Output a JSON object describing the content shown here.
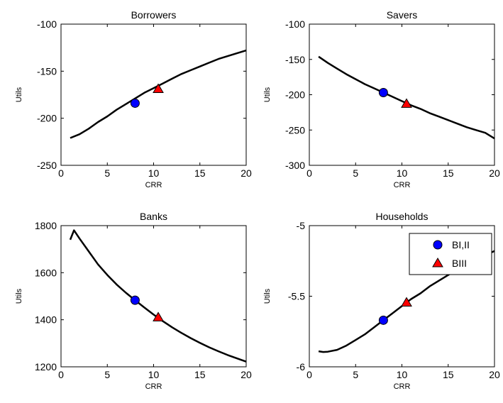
{
  "chart_data": [
    {
      "type": "line",
      "title": "Borrowers",
      "xlabel": "CRR",
      "ylabel": "Utils",
      "xlim": [
        0,
        20
      ],
      "ylim": [
        -250,
        -100
      ],
      "xticks": [
        0,
        5,
        10,
        15,
        20
      ],
      "yticks": [
        -250,
        -200,
        -150,
        -100
      ],
      "grid": false,
      "series": [
        {
          "x": [
            1,
            2,
            3,
            4,
            5,
            6,
            7,
            8,
            9,
            10,
            11,
            12,
            13,
            14,
            15,
            16,
            17,
            18,
            19,
            20
          ],
          "values": [
            -221,
            -217,
            -211,
            -204,
            -198,
            -191,
            -185,
            -179,
            -173,
            -168,
            -163,
            -158,
            -153,
            -149,
            -145,
            -141,
            -137,
            -134,
            -131,
            -128
          ]
        }
      ],
      "markers": [
        {
          "label": "BI,II",
          "shape": "circle",
          "color": "#0000ff",
          "x": 8,
          "y": -184
        },
        {
          "label": "BIII",
          "shape": "triangle",
          "color": "#ff0000",
          "x": 10.5,
          "y": -169
        }
      ]
    },
    {
      "type": "line",
      "title": "Savers",
      "xlabel": "CRR",
      "ylabel": "Utils",
      "xlim": [
        0,
        20
      ],
      "ylim": [
        -300,
        -100
      ],
      "xticks": [
        0,
        5,
        10,
        15,
        20
      ],
      "yticks": [
        -300,
        -250,
        -200,
        -150,
        -100
      ],
      "grid": false,
      "series": [
        {
          "x": [
            1,
            2,
            3,
            4,
            5,
            6,
            7,
            8,
            9,
            10,
            11,
            12,
            13,
            14,
            15,
            16,
            17,
            18,
            19,
            20
          ],
          "values": [
            -146,
            -155,
            -163,
            -171,
            -178,
            -185,
            -191,
            -197,
            -203,
            -209,
            -215,
            -220,
            -226,
            -231,
            -236,
            -241,
            -246,
            -250,
            -254,
            -262
          ]
        }
      ],
      "markers": [
        {
          "label": "BI,II",
          "shape": "circle",
          "color": "#0000ff",
          "x": 8,
          "y": -197
        },
        {
          "label": "BIII",
          "shape": "triangle",
          "color": "#ff0000",
          "x": 10.5,
          "y": -213
        }
      ]
    },
    {
      "type": "line",
      "title": "Banks",
      "xlabel": "CRR",
      "ylabel": "Utils",
      "xlim": [
        0,
        20
      ],
      "ylim": [
        1200,
        1800
      ],
      "xticks": [
        0,
        5,
        10,
        15,
        20
      ],
      "yticks": [
        1200,
        1400,
        1600,
        1800
      ],
      "grid": false,
      "series": [
        {
          "x": [
            1,
            1.4,
            2,
            3,
            4,
            5,
            6,
            7,
            8,
            9,
            10,
            11,
            12,
            13,
            14,
            15,
            16,
            17,
            18,
            19,
            20
          ],
          "values": [
            1740,
            1780,
            1745,
            1690,
            1635,
            1590,
            1550,
            1515,
            1483,
            1452,
            1422,
            1394,
            1368,
            1344,
            1322,
            1302,
            1283,
            1266,
            1250,
            1236,
            1222
          ]
        }
      ],
      "markers": [
        {
          "label": "BI,II",
          "shape": "circle",
          "color": "#0000ff",
          "x": 8,
          "y": 1483
        },
        {
          "label": "BIII",
          "shape": "triangle",
          "color": "#ff0000",
          "x": 10.5,
          "y": 1410
        }
      ]
    },
    {
      "type": "line",
      "title": "Households",
      "xlabel": "CRR",
      "ylabel": "Utils",
      "xlim": [
        0,
        20
      ],
      "ylim": [
        -6,
        -5
      ],
      "xticks": [
        0,
        5,
        10,
        15,
        20
      ],
      "yticks": [
        -6,
        -5.5,
        -5
      ],
      "grid": false,
      "legend": {
        "position": "top-right"
      },
      "series": [
        {
          "x": [
            1,
            1.5,
            2,
            3,
            4,
            5,
            6,
            7,
            8,
            9,
            10,
            11,
            12,
            13,
            14,
            15,
            16,
            17,
            18,
            19,
            20
          ],
          "values": [
            -5.89,
            -5.895,
            -5.893,
            -5.88,
            -5.85,
            -5.81,
            -5.77,
            -5.72,
            -5.67,
            -5.62,
            -5.57,
            -5.52,
            -5.48,
            -5.43,
            -5.39,
            -5.35,
            -5.31,
            -5.28,
            -5.24,
            -5.21,
            -5.18
          ]
        }
      ],
      "markers": [
        {
          "label": "BI,II",
          "shape": "circle",
          "color": "#0000ff",
          "x": 8,
          "y": -5.67
        },
        {
          "label": "BIII",
          "shape": "triangle",
          "color": "#ff0000",
          "x": 10.5,
          "y": -5.545
        }
      ]
    }
  ]
}
